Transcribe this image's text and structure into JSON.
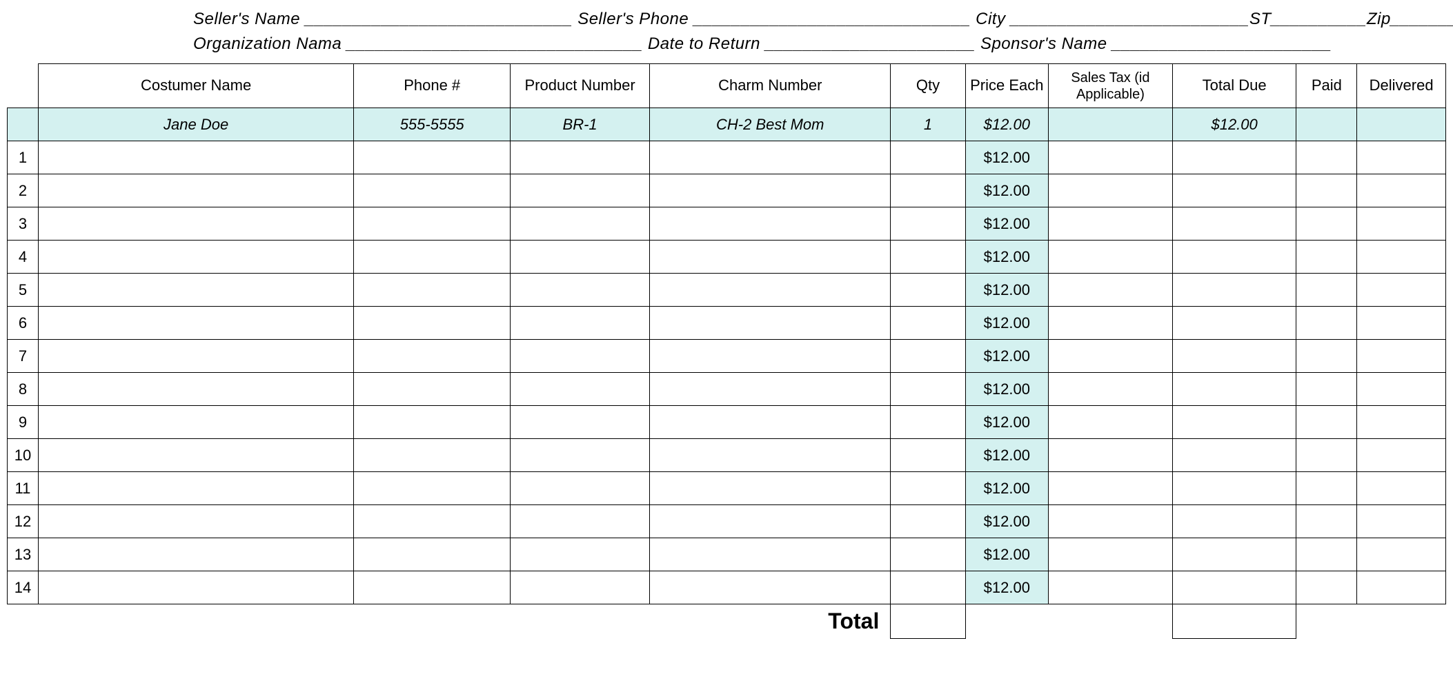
{
  "header": {
    "line1": "Seller's Name ____________________________ Seller's Phone _____________________________ City _________________________ST__________Zip_______________",
    "line2": "Organization Nama _______________________________ Date to Return ______________________ Sponsor's Name _______________________"
  },
  "table": {
    "columns": {
      "customer": "Costumer Name",
      "phone": "Phone #",
      "product": "Product Number",
      "charm": "Charm Number",
      "qty": "Qty",
      "price": "Price Each",
      "tax": "Sales Tax (id Applicable)",
      "total": "Total Due",
      "paid": "Paid",
      "delivered": "Delivered"
    },
    "example": {
      "customer": "Jane Doe",
      "phone": "555-5555",
      "product": "BR-1",
      "charm": "CH-2 Best Mom",
      "qty": "1",
      "price": "$12.00",
      "tax": "",
      "total": "$12.00",
      "paid": "",
      "delivered": ""
    },
    "rows": [
      {
        "n": "1",
        "price": "$12.00"
      },
      {
        "n": "2",
        "price": "$12.00"
      },
      {
        "n": "3",
        "price": "$12.00"
      },
      {
        "n": "4",
        "price": "$12.00"
      },
      {
        "n": "5",
        "price": "$12.00"
      },
      {
        "n": "6",
        "price": "$12.00"
      },
      {
        "n": "7",
        "price": "$12.00"
      },
      {
        "n": "8",
        "price": "$12.00"
      },
      {
        "n": "9",
        "price": "$12.00"
      },
      {
        "n": "10",
        "price": "$12.00"
      },
      {
        "n": "11",
        "price": "$12.00"
      },
      {
        "n": "12",
        "price": "$12.00"
      },
      {
        "n": "13",
        "price": "$12.00"
      },
      {
        "n": "14",
        "price": "$12.00"
      }
    ],
    "total_label": "Total"
  },
  "colors": {
    "highlight": "#d4f1f0",
    "border": "#000000",
    "background": "#ffffff"
  }
}
